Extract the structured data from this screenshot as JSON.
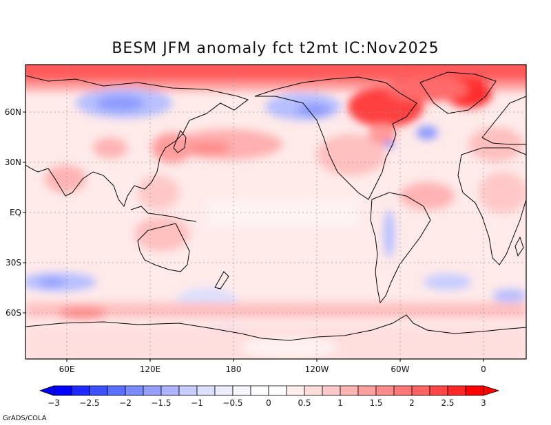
{
  "title": "BESM   JFM anomaly fct t2mt IC:Nov2025",
  "credit": "GrADS/COLA",
  "lat_labels": [
    "60N",
    "30N",
    "EQ",
    "30S",
    "60S"
  ],
  "lon_labels": [
    "60E",
    "120E",
    "180",
    "120W",
    "60W",
    "0"
  ],
  "colorbar": {
    "labels": [
      "-3",
      "-2.5",
      "-2",
      "-1.5",
      "-1",
      "-0.5",
      "0",
      "0.5",
      "1",
      "1.5",
      "2",
      "2.5",
      "3"
    ],
    "colors": [
      "#0000ff",
      "#1e28ff",
      "#3c50ff",
      "#5a6eff",
      "#7a8cff",
      "#969fff",
      "#afb4ff",
      "#c8cdff",
      "#dcdfff",
      "#ececff",
      "#f6f6ff",
      "#ffffff",
      "#ffffff",
      "#ffeeee",
      "#ffdcdc",
      "#ffc8c8",
      "#ffb4b4",
      "#ffa0a0",
      "#ff8c8c",
      "#ff7878",
      "#ff6464",
      "#ff4646",
      "#ff2828",
      "#ff0000"
    ]
  },
  "anomaly_colors": {
    "arctic": "#ff5a5a",
    "greenland": "#ff3030",
    "warm_strong": "#ff7a7a",
    "warm_mid": "#ffb0b0",
    "warm_light": "#ffd2d2",
    "warm_faint": "#ffe8e8",
    "cool_light": "#dde0ff",
    "cool_mid": "#b8c0ff",
    "cool_strong": "#8f9cff",
    "coast": "#000000",
    "grid": "#9a9a9a"
  }
}
